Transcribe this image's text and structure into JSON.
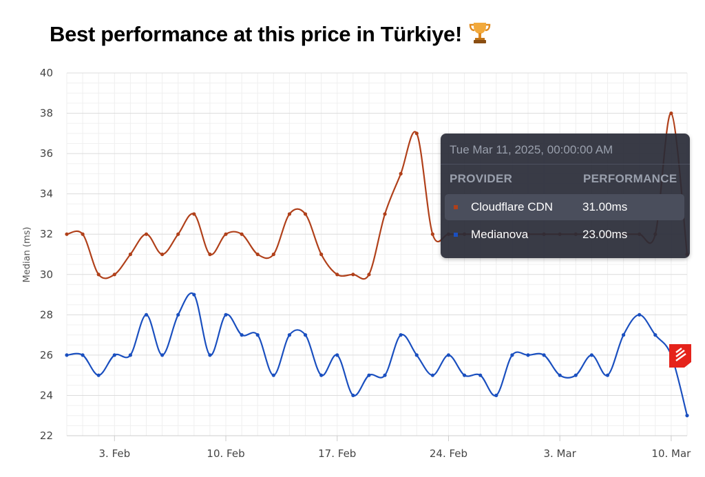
{
  "headline": "Best performance at this price in Türkiye!",
  "trophy_icon": "trophy-icon",
  "chart_data": {
    "type": "line",
    "ylabel": "Median (ms)",
    "xlabel": "",
    "ylim": [
      22,
      40
    ],
    "yticks": [
      22,
      24,
      26,
      28,
      30,
      32,
      34,
      36,
      38,
      40
    ],
    "x_range": [
      "2025-01-31",
      "2025-03-11"
    ],
    "xticks": [
      {
        "date": "2025-02-03",
        "label": "3. Feb"
      },
      {
        "date": "2025-02-10",
        "label": "10. Feb"
      },
      {
        "date": "2025-02-17",
        "label": "17. Feb"
      },
      {
        "date": "2025-02-24",
        "label": "24. Feb"
      },
      {
        "date": "2025-03-03",
        "label": "3. Mar"
      },
      {
        "date": "2025-03-10",
        "label": "10. Mar"
      }
    ],
    "x": [
      "2025-01-31",
      "2025-02-01",
      "2025-02-02",
      "2025-02-03",
      "2025-02-04",
      "2025-02-05",
      "2025-02-06",
      "2025-02-07",
      "2025-02-08",
      "2025-02-09",
      "2025-02-10",
      "2025-02-11",
      "2025-02-12",
      "2025-02-13",
      "2025-02-14",
      "2025-02-15",
      "2025-02-16",
      "2025-02-17",
      "2025-02-18",
      "2025-02-19",
      "2025-02-20",
      "2025-02-21",
      "2025-02-22",
      "2025-02-23",
      "2025-02-24",
      "2025-02-25",
      "2025-02-26",
      "2025-02-27",
      "2025-02-28",
      "2025-03-01",
      "2025-03-02",
      "2025-03-03",
      "2025-03-04",
      "2025-03-05",
      "2025-03-06",
      "2025-03-07",
      "2025-03-08",
      "2025-03-09",
      "2025-03-10",
      "2025-03-11"
    ],
    "grid": true,
    "series": [
      {
        "name": "Cloudflare CDN",
        "color": "#b0401a",
        "values": [
          32,
          32,
          30,
          30,
          31,
          32,
          31,
          32,
          33,
          31,
          32,
          32,
          31,
          31,
          33,
          33,
          31,
          30,
          30,
          30,
          33,
          35,
          37,
          32,
          32,
          32,
          32,
          32,
          32,
          32,
          32,
          32,
          32,
          32,
          32,
          32,
          32,
          32,
          38,
          31
        ]
      },
      {
        "name": "Medianova",
        "color": "#1a4fbf",
        "values": [
          26,
          26,
          25,
          26,
          26,
          28,
          26,
          28,
          29,
          26,
          28,
          27,
          27,
          25,
          27,
          27,
          25,
          26,
          24,
          25,
          25,
          27,
          26,
          25,
          26,
          25,
          25,
          24,
          26,
          26,
          26,
          25,
          25,
          26,
          25,
          27,
          28,
          27,
          26,
          23
        ]
      }
    ]
  },
  "tooltip": {
    "date": "Tue Mar 11, 2025, 00:00:00 AM",
    "col_provider": "PROVIDER",
    "col_performance": "PERFORMANCE",
    "rows": [
      {
        "provider": "Cloudflare CDN",
        "value": "31.00ms",
        "color": "#b0401a"
      },
      {
        "provider": "Medianova",
        "value": "23.00ms",
        "color": "#1a4fbf"
      }
    ]
  },
  "logo_icon": "provider-logo-icon"
}
